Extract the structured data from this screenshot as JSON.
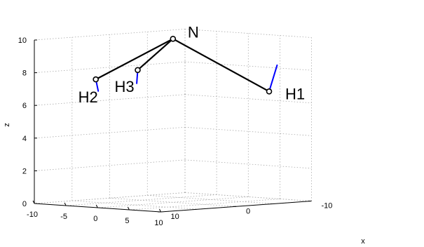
{
  "chart_data": {
    "type": "line",
    "title": "",
    "xlabel": "x",
    "ylabel": "",
    "zlabel": "z",
    "projection": "3d",
    "grid": true,
    "xlim": [
      -10,
      10
    ],
    "ylim": [
      -10,
      10
    ],
    "zlim": [
      0,
      10
    ],
    "x_ticks": [
      "-10",
      "0",
      "10"
    ],
    "y_ticks": [
      "-10",
      "-5",
      "0",
      "5",
      "10"
    ],
    "z_ticks": [
      "0",
      "2",
      "4",
      "6",
      "8",
      "10"
    ],
    "colors": {
      "bonds": "#000000",
      "vectors": "#0000ff",
      "grid": "#aaaaaa"
    },
    "points": [
      {
        "label": "N",
        "x": 0,
        "y": 0,
        "z": 10
      },
      {
        "label": "H1",
        "x": -5.8,
        "y": 8.3,
        "z": 6.8
      },
      {
        "label": "H2",
        "x": 3.1,
        "y": -8.5,
        "z": 7.4
      },
      {
        "label": "H3",
        "x": 4.0,
        "y": -0.8,
        "z": 8.2
      }
    ],
    "bonds": [
      [
        "N",
        "H1"
      ],
      [
        "N",
        "H2"
      ],
      [
        "N",
        "H3"
      ]
    ],
    "vectors": [
      {
        "from": "H1",
        "dx": -0.6,
        "dy": 0.55,
        "dz": 1.6
      },
      {
        "from": "H2",
        "dx": 0.1,
        "dy": 0.5,
        "dz": -0.7
      },
      {
        "from": "H3",
        "dx": 0.3,
        "dy": 0.2,
        "dz": -0.8
      }
    ]
  }
}
